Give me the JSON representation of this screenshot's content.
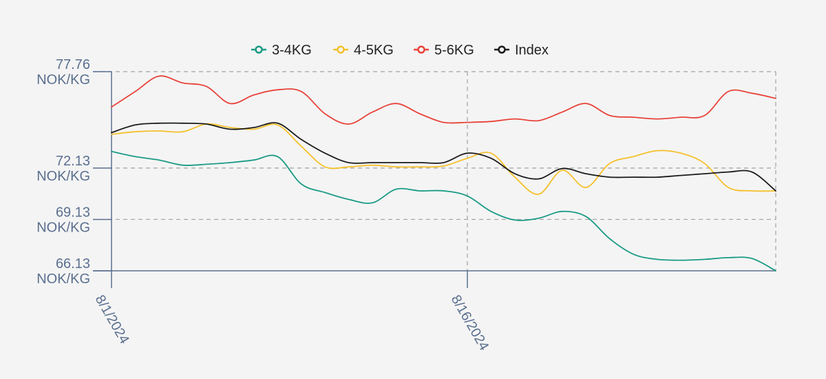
{
  "chart_data": {
    "type": "line",
    "title": "",
    "xlabel": "",
    "ylabel": "",
    "grid": true,
    "legend_position": "top-center",
    "x": [
      "8/1/2024",
      "8/2/2024",
      "8/3/2024",
      "8/4/2024",
      "8/5/2024",
      "8/6/2024",
      "8/7/2024",
      "8/8/2024",
      "8/9/2024",
      "8/10/2024",
      "8/11/2024",
      "8/12/2024",
      "8/13/2024",
      "8/14/2024",
      "8/15/2024",
      "8/16/2024",
      "8/17/2024",
      "8/18/2024",
      "8/19/2024",
      "8/20/2024",
      "8/21/2024",
      "8/22/2024",
      "8/23/2024",
      "8/24/2024",
      "8/25/2024",
      "8/26/2024",
      "8/27/2024",
      "8/28/2024",
      "8/29/2024"
    ],
    "x_ticks": [
      "8/1/2024",
      "8/16/2024"
    ],
    "y_ticks": [
      {
        "value": 77.76,
        "line1": "77.76",
        "line2": "NOK/KG"
      },
      {
        "value": 72.13,
        "line1": "72.13",
        "line2": "NOK/KG"
      },
      {
        "value": 69.13,
        "line1": "69.13",
        "line2": "NOK/KG"
      },
      {
        "value": 66.13,
        "line1": "66.13",
        "line2": "NOK/KG"
      }
    ],
    "ylim": [
      66.13,
      77.76
    ],
    "series": [
      {
        "name": "3-4KG",
        "color": "#1a9a85",
        "values": [
          73.1,
          72.8,
          72.6,
          72.3,
          72.35,
          72.45,
          72.6,
          72.8,
          71.2,
          70.7,
          70.3,
          70.1,
          70.9,
          70.8,
          70.8,
          70.5,
          69.6,
          69.1,
          69.2,
          69.6,
          69.3,
          68.0,
          67.1,
          66.8,
          66.75,
          66.8,
          66.9,
          66.85,
          66.13
        ]
      },
      {
        "name": "4-5KG",
        "color": "#f5c02a",
        "values": [
          74.1,
          74.25,
          74.3,
          74.25,
          74.7,
          74.5,
          74.4,
          74.65,
          73.4,
          72.2,
          72.2,
          72.3,
          72.2,
          72.2,
          72.25,
          72.7,
          73.0,
          71.6,
          70.6,
          72.0,
          71.0,
          72.4,
          72.8,
          73.15,
          73.0,
          72.4,
          71.0,
          70.8,
          70.8
        ]
      },
      {
        "name": "5-6KG",
        "color": "#e8433a",
        "values": [
          75.7,
          76.6,
          77.5,
          77.1,
          76.9,
          75.9,
          76.4,
          76.7,
          76.6,
          75.3,
          74.7,
          75.4,
          75.9,
          75.3,
          74.8,
          74.8,
          74.85,
          75.0,
          74.9,
          75.4,
          75.9,
          75.2,
          75.1,
          75.0,
          75.1,
          75.2,
          76.6,
          76.5,
          76.2
        ]
      },
      {
        "name": "Index",
        "color": "#1a1a1a",
        "values": [
          74.2,
          74.65,
          74.75,
          74.75,
          74.7,
          74.4,
          74.5,
          74.75,
          73.8,
          73.0,
          72.45,
          72.45,
          72.45,
          72.45,
          72.45,
          73.0,
          72.7,
          71.8,
          71.5,
          72.1,
          71.8,
          71.6,
          71.6,
          71.6,
          71.7,
          71.8,
          71.9,
          71.9,
          70.8
        ]
      }
    ]
  }
}
